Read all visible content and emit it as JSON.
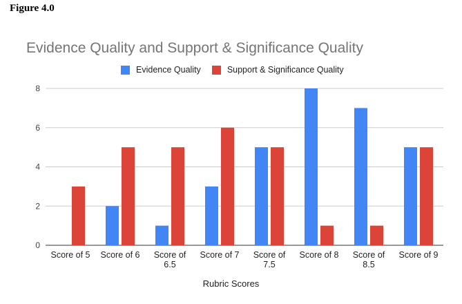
{
  "figure_label": "Figure 4.0",
  "chart_data": {
    "type": "bar",
    "title": "Evidence Quality and Support & Significance Quality",
    "xlabel": "Rubric Scores",
    "ylabel": "",
    "ylim": [
      0,
      8
    ],
    "yticks": [
      "0",
      "2",
      "4",
      "6",
      "8"
    ],
    "grid": true,
    "legend_position": "top",
    "categories": [
      [
        "Score of 5"
      ],
      [
        "Score of 6"
      ],
      [
        "Score of",
        "6.5"
      ],
      [
        "Score of 7"
      ],
      [
        "Score of",
        "7.5"
      ],
      [
        "Score of 8"
      ],
      [
        "Score of",
        "8.5"
      ],
      [
        "Score of 9"
      ]
    ],
    "series": [
      {
        "name": "Evidence Quality",
        "color": "#4285f4",
        "values": [
          0,
          2,
          1,
          3,
          5,
          8,
          7,
          5
        ]
      },
      {
        "name": "Support & Significance Quality",
        "color": "#db4437",
        "values": [
          3,
          5,
          5,
          6,
          5,
          1,
          1,
          5
        ]
      }
    ]
  }
}
